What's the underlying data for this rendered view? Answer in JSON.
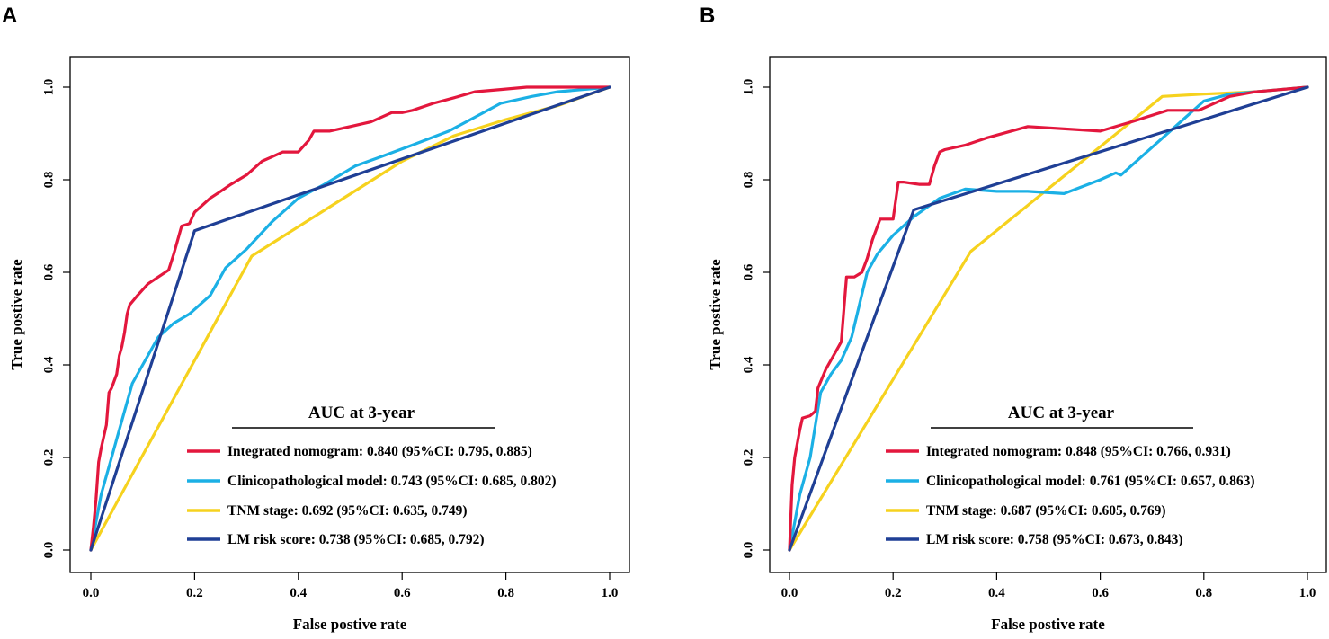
{
  "chart_data": [
    {
      "panel": "A",
      "type": "line",
      "xlabel": "False postive rate",
      "ylabel": "True postive rate",
      "xlim": [
        0,
        1
      ],
      "ylim": [
        0,
        1
      ],
      "xticks": [
        "0.0",
        "0.2",
        "0.4",
        "0.6",
        "0.8",
        "1.0"
      ],
      "yticks": [
        "0.0",
        "0.2",
        "0.4",
        "0.6",
        "0.8",
        "1.0"
      ],
      "grid": false,
      "legend_position": "bottom-right",
      "legend_title": "AUC at 3-year",
      "series": [
        {
          "name": "Integrated nomogram",
          "label": "Integrated nomogram: 0.840 (95%CI: 0.795, 0.885)",
          "color": "#e3173d",
          "x": [
            0,
            0.005,
            0.01,
            0.015,
            0.02,
            0.03,
            0.035,
            0.04,
            0.05,
            0.055,
            0.06,
            0.065,
            0.07,
            0.075,
            0.09,
            0.11,
            0.13,
            0.15,
            0.16,
            0.175,
            0.19,
            0.2,
            0.21,
            0.23,
            0.25,
            0.27,
            0.3,
            0.32,
            0.33,
            0.35,
            0.37,
            0.4,
            0.42,
            0.43,
            0.46,
            0.5,
            0.54,
            0.58,
            0.6,
            0.62,
            0.66,
            0.7,
            0.74,
            0.79,
            0.84,
            0.9,
            1.0
          ],
          "y": [
            0,
            0.05,
            0.11,
            0.19,
            0.22,
            0.27,
            0.34,
            0.35,
            0.38,
            0.42,
            0.44,
            0.47,
            0.51,
            0.53,
            0.55,
            0.575,
            0.59,
            0.605,
            0.64,
            0.7,
            0.705,
            0.73,
            0.74,
            0.76,
            0.775,
            0.79,
            0.81,
            0.83,
            0.84,
            0.85,
            0.86,
            0.86,
            0.885,
            0.905,
            0.905,
            0.915,
            0.925,
            0.945,
            0.945,
            0.95,
            0.965,
            0.977,
            0.99,
            0.995,
            1.0,
            1.0,
            1.0
          ]
        },
        {
          "name": "Clinicopathological model",
          "label": "Clinicopathological model: 0.743 (95%CI: 0.685, 0.802)",
          "color": "#1bb0e5",
          "x": [
            0,
            0.02,
            0.04,
            0.06,
            0.08,
            0.1,
            0.13,
            0.16,
            0.19,
            0.23,
            0.26,
            0.3,
            0.35,
            0.4,
            0.45,
            0.51,
            0.56,
            0.62,
            0.69,
            0.74,
            0.79,
            0.85,
            0.9,
            1.0
          ],
          "y": [
            0,
            0.12,
            0.2,
            0.28,
            0.36,
            0.4,
            0.46,
            0.49,
            0.51,
            0.55,
            0.61,
            0.65,
            0.71,
            0.76,
            0.79,
            0.83,
            0.85,
            0.875,
            0.905,
            0.935,
            0.965,
            0.98,
            0.99,
            1.0
          ]
        },
        {
          "name": "TNM stage",
          "label": "TNM stage: 0.692 (95%CI: 0.635, 0.749)",
          "color": "#f6d21e",
          "x": [
            0,
            0.31,
            0.6,
            0.7,
            0.8,
            0.9,
            1.0
          ],
          "y": [
            0,
            0.635,
            0.84,
            0.895,
            0.93,
            0.96,
            1.0
          ]
        },
        {
          "name": "LM risk score",
          "label": "LM risk score: 0.738 (95%CI: 0.685, 0.792)",
          "color": "#1f3f95",
          "x": [
            0,
            0.2,
            1.0
          ],
          "y": [
            0,
            0.69,
            1.0
          ]
        }
      ]
    },
    {
      "panel": "B",
      "type": "line",
      "xlabel": "False postive rate",
      "ylabel": "True postive rate",
      "xlim": [
        0,
        1
      ],
      "ylim": [
        0,
        1
      ],
      "xticks": [
        "0.0",
        "0.2",
        "0.4",
        "0.6",
        "0.8",
        "1.0"
      ],
      "yticks": [
        "0.0",
        "0.2",
        "0.4",
        "0.6",
        "0.8",
        "1.0"
      ],
      "grid": false,
      "legend_position": "bottom-right",
      "legend_title": "AUC at 3-year",
      "series": [
        {
          "name": "Integrated nomogram",
          "label": "Integrated nomogram: 0.848 (95%CI: 0.766, 0.931)",
          "color": "#e3173d",
          "x": [
            0,
            0.005,
            0.01,
            0.02,
            0.025,
            0.04,
            0.05,
            0.055,
            0.07,
            0.09,
            0.1,
            0.11,
            0.125,
            0.14,
            0.15,
            0.16,
            0.175,
            0.19,
            0.2,
            0.21,
            0.22,
            0.25,
            0.27,
            0.28,
            0.29,
            0.3,
            0.34,
            0.38,
            0.46,
            0.6,
            0.66,
            0.73,
            0.79,
            0.85,
            0.9,
            1.0
          ],
          "y": [
            0,
            0.14,
            0.2,
            0.26,
            0.285,
            0.29,
            0.3,
            0.35,
            0.39,
            0.43,
            0.45,
            0.59,
            0.59,
            0.6,
            0.63,
            0.67,
            0.715,
            0.715,
            0.715,
            0.795,
            0.795,
            0.79,
            0.79,
            0.83,
            0.86,
            0.865,
            0.875,
            0.89,
            0.915,
            0.905,
            0.925,
            0.95,
            0.95,
            0.98,
            0.99,
            1.0
          ]
        },
        {
          "name": "Clinicopathological model",
          "label": "Clinicopathological model: 0.761 (95%CI: 0.657, 0.863)",
          "color": "#1bb0e5",
          "x": [
            0,
            0.01,
            0.02,
            0.04,
            0.06,
            0.08,
            0.1,
            0.12,
            0.15,
            0.17,
            0.2,
            0.24,
            0.29,
            0.34,
            0.4,
            0.46,
            0.53,
            0.6,
            0.63,
            0.64,
            0.7,
            0.76,
            0.8,
            0.85,
            0.9,
            1.0
          ],
          "y": [
            0,
            0.06,
            0.12,
            0.2,
            0.34,
            0.38,
            0.41,
            0.46,
            0.6,
            0.64,
            0.68,
            0.72,
            0.76,
            0.78,
            0.775,
            0.775,
            0.77,
            0.8,
            0.815,
            0.81,
            0.87,
            0.93,
            0.97,
            0.985,
            0.99,
            1.0
          ]
        },
        {
          "name": "TNM stage",
          "label": "TNM stage: 0.687 (95%CI: 0.605, 0.769)",
          "color": "#f6d21e",
          "x": [
            0,
            0.35,
            0.72,
            0.8,
            0.9,
            1.0
          ],
          "y": [
            0,
            0.645,
            0.98,
            0.985,
            0.99,
            1.0
          ]
        },
        {
          "name": "LM risk score",
          "label": "LM risk score: 0.758 (95%CI: 0.673, 0.843)",
          "color": "#1f3f95",
          "x": [
            0,
            0.24,
            1.0
          ],
          "y": [
            0,
            0.735,
            1.0
          ]
        }
      ]
    }
  ]
}
